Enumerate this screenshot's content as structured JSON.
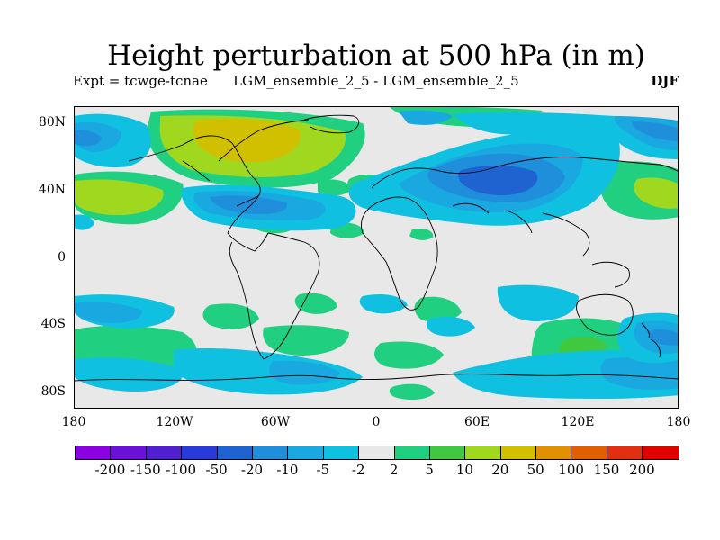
{
  "header": {
    "title": "Height perturbation at 500 hPa (in m)",
    "experiment": "Expt = tcwge-tcnae",
    "comparison": "LGM_ensemble_2_5 - LGM_ensemble_2_5",
    "season": "DJF"
  },
  "axes": {
    "lat_ticks": [
      "80N",
      "40N",
      "0",
      "40S",
      "80S"
    ],
    "lon_ticks": [
      "180",
      "120W",
      "60W",
      "0",
      "60E",
      "120E",
      "180"
    ]
  },
  "chart_data": {
    "type": "heatmap",
    "variable": "500 hPa geopotential height perturbation (m)",
    "projection": "cylindrical equidistant",
    "lon_range": [
      -180,
      180
    ],
    "lat_range": [
      -90,
      90
    ],
    "background_color": "#e8e8e8",
    "contour_levels": [
      -200,
      -150,
      -100,
      -50,
      -20,
      -10,
      -5,
      -2,
      2,
      5,
      10,
      20,
      50,
      100,
      150,
      200
    ],
    "colors": [
      "#8a00e0",
      "#6a10d8",
      "#5020d0",
      "#2a3ad8",
      "#1e63d0",
      "#1f8fdc",
      "#1aa8e0",
      "#10c0e0",
      "#e8e8e8",
      "#20d080",
      "#40c840",
      "#a0d820",
      "#d0c000",
      "#e09000",
      "#e06000",
      "#e03010",
      "#e00000"
    ]
  },
  "colorbar": {
    "labels": [
      "-200",
      "-150",
      "-100",
      "-50",
      "-20",
      "-10",
      "-5",
      "-2",
      "2",
      "5",
      "10",
      "20",
      "50",
      "100",
      "150",
      "200"
    ]
  }
}
